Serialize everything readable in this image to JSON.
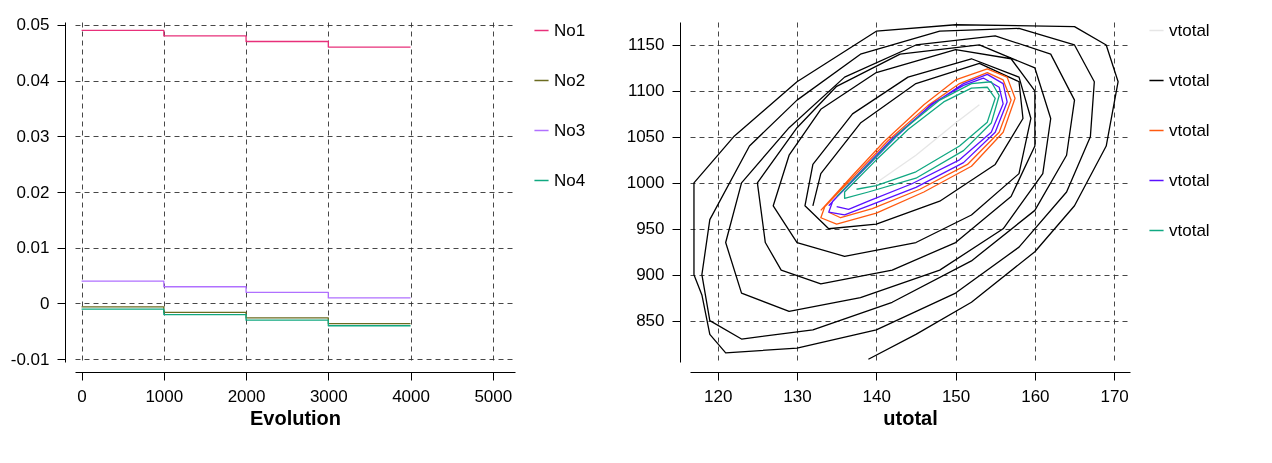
{
  "chart_data": [
    {
      "type": "step",
      "xlabel": "Evolution",
      "x": [
        0,
        1000,
        2000,
        3000,
        4000
      ],
      "xlim": [
        -80,
        5270
      ],
      "ylim": [
        -0.0105,
        0.0505
      ],
      "xticks": [
        0,
        1000,
        2000,
        3000,
        4000,
        5000
      ],
      "yticks": [
        -0.01,
        0,
        0.01,
        0.02,
        0.03,
        0.04,
        0.05
      ],
      "grid": true,
      "legend": "top right",
      "line_style": "solid",
      "marker": "none",
      "series": [
        {
          "name": "No1",
          "color": "#e8307a",
          "values": [
            0.049,
            0.048,
            0.047,
            0.046,
            0.046
          ]
        },
        {
          "name": "No2",
          "color": "#6b6b20",
          "values": [
            -0.0006,
            -0.0016,
            -0.0026,
            -0.0036,
            -0.0036
          ]
        },
        {
          "name": "No3",
          "color": "#b070ff",
          "values": [
            0.004,
            0.003,
            0.002,
            0.001,
            0.001
          ]
        },
        {
          "name": "No4",
          "color": "#10a880",
          "values": [
            -0.001,
            -0.002,
            -0.003,
            -0.004,
            -0.004
          ]
        }
      ]
    },
    {
      "type": "line",
      "xlabel": "utotal",
      "xlim": [
        116.5,
        172
      ],
      "ylim": [
        805,
        1175
      ],
      "xticks": [
        120,
        130,
        140,
        150,
        160,
        170
      ],
      "yticks": [
        850,
        900,
        950,
        1000,
        1050,
        1100,
        1150
      ],
      "grid": true,
      "legend": "top right",
      "line_style": "solid",
      "marker": "none",
      "series": [
        {
          "name": "vtotal",
          "color": "#e6e6e6",
          "x": [
            140,
            145,
            150,
            153
          ],
          "values": [
            1000,
            1030,
            1065,
            1085
          ]
        },
        {
          "name": "vtotal",
          "color": "#000000",
          "x": [
            139,
            145,
            152,
            160,
            165,
            169,
            170.5,
            169,
            165,
            150,
            140,
            130,
            122,
            117,
            117,
            118,
            119,
            121,
            130,
            140,
            150,
            158,
            164,
            167,
            167.5,
            165,
            158,
            148,
            138,
            130,
            124,
            119,
            118,
            119,
            123,
            132,
            142,
            152,
            160,
            164,
            165,
            162,
            155,
            145,
            136,
            129,
            123,
            121,
            123,
            129,
            138,
            148,
            156,
            161,
            162,
            160,
            153,
            143,
            135,
            130,
            125,
            126,
            128,
            133,
            142,
            150,
            157,
            160,
            160,
            157,
            150,
            140,
            133,
            129,
            127,
            130,
            136,
            145,
            152,
            158,
            159.5,
            158,
            152,
            144,
            137,
            132,
            131,
            134,
            140,
            148,
            155,
            158.5,
            158,
            153,
            145,
            138,
            133,
            132
          ],
          "values": [
            808,
            835,
            870,
            925,
            975,
            1040,
            1110,
            1150,
            1170,
            1172,
            1165,
            1110,
            1050,
            1000,
            900,
            878,
            835,
            815,
            820,
            840,
            880,
            930,
            990,
            1050,
            1110,
            1150,
            1168,
            1165,
            1140,
            1090,
            1040,
            960,
            900,
            850,
            830,
            840,
            870,
            915,
            970,
            1030,
            1090,
            1140,
            1160,
            1150,
            1115,
            1060,
            1000,
            935,
            880,
            860,
            875,
            905,
            950,
            1010,
            1070,
            1125,
            1150,
            1140,
            1105,
            1060,
            1000,
            935,
            905,
            890,
            905,
            935,
            985,
            1040,
            1100,
            1135,
            1145,
            1120,
            1080,
            1030,
            975,
            935,
            920,
            935,
            965,
            1010,
            1070,
            1115,
            1135,
            1115,
            1075,
            1020,
            975,
            950,
            955,
            980,
            1020,
            1070,
            1110,
            1130,
            1108,
            1065,
            1010,
            975
          ]
        },
        {
          "name": "vtotal",
          "color": "#ff5a10",
          "x": [
            133,
            137,
            141,
            146,
            150,
            154,
            156.5,
            157.5,
            156,
            152,
            146,
            140,
            135,
            133,
            133.5,
            137.5,
            141.5,
            146.5,
            150.5,
            154,
            156,
            157,
            155.5,
            151.5,
            145.5,
            139.5,
            135.5,
            134
          ],
          "values": [
            970,
            1008,
            1045,
            1085,
            1112,
            1124,
            1115,
            1092,
            1055,
            1018,
            990,
            967,
            955,
            962,
            974,
            1010,
            1046,
            1084,
            1108,
            1120,
            1112,
            1090,
            1055,
            1020,
            993,
            972,
            962,
            968
          ]
        },
        {
          "name": "vtotal",
          "color": "#5a10ff",
          "x": [
            134,
            138,
            142,
            147,
            151,
            154,
            156,
            156.5,
            155,
            151,
            145,
            139,
            136,
            134,
            134.5,
            138.5,
            142.5,
            147,
            151,
            153.5,
            155.5,
            156,
            154.5,
            150.5,
            144.5,
            139,
            136.5,
            135
          ],
          "values": [
            975,
            1012,
            1048,
            1085,
            1108,
            1118,
            1108,
            1088,
            1055,
            1022,
            995,
            975,
            965,
            968,
            980,
            1015,
            1050,
            1086,
            1106,
            1114,
            1104,
            1086,
            1055,
            1025,
            999,
            980,
            971,
            974
          ]
        },
        {
          "name": "vtotal",
          "color": "#10a882",
          "x": [
            135,
            139,
            143,
            148,
            152,
            154.5,
            155.5,
            154.5,
            151,
            145,
            139,
            136,
            136,
            140,
            144,
            148.5,
            152,
            154,
            155,
            154,
            150.5,
            145,
            140,
            137.5
          ],
          "values": [
            985,
            1020,
            1055,
            1090,
            1108,
            1110,
            1095,
            1065,
            1035,
            1005,
            990,
            983,
            990,
            1025,
            1058,
            1088,
            1103,
            1104,
            1092,
            1066,
            1040,
            1012,
            997,
            993
          ]
        }
      ]
    }
  ]
}
